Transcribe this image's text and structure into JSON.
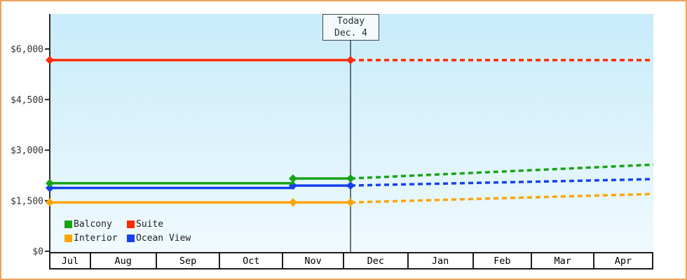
{
  "window": {
    "kind": "price-history-chart"
  },
  "colors": {
    "frame_border": "#eba25c",
    "plot_top": "#c8ebfa",
    "plot_bottom": "#f0fafe",
    "axis": "#2b2b2b",
    "today_line": "#3c464d",
    "balcony": "#17a317",
    "suite": "#fa2b00",
    "interior": "#ffa405",
    "ocean_view": "#1441ef"
  },
  "legend": {
    "items": [
      {
        "label": "Balcony",
        "color": "#17a317"
      },
      {
        "label": "Suite",
        "color": "#fa2b00"
      },
      {
        "label": "Interior",
        "color": "#ffa405"
      },
      {
        "label": "Ocean View",
        "color": "#1441ef"
      }
    ]
  },
  "chart_data": {
    "type": "line",
    "title": "",
    "xlabel": "",
    "ylabel": "",
    "grid": false,
    "legend_position": "bottom-left",
    "ylim": [
      0,
      6000
    ],
    "y_ticks": [
      {
        "value": 0,
        "label": "$0"
      },
      {
        "value": 1500,
        "label": "$1,500"
      },
      {
        "value": 3000,
        "label": "$3,000"
      },
      {
        "value": 4500,
        "label": "$4,500"
      },
      {
        "value": 6000,
        "label": "$6,000"
      }
    ],
    "x_months": [
      {
        "label": "Jul",
        "width_pct": 6.73
      },
      {
        "label": "Aug",
        "width_pct": 10.9
      },
      {
        "label": "Sep",
        "width_pct": 10.56
      },
      {
        "label": "Oct",
        "width_pct": 10.44
      },
      {
        "label": "Nov",
        "width_pct": 10.09
      },
      {
        "label": "Dec",
        "width_pct": 10.67
      },
      {
        "label": "Jan",
        "width_pct": 10.79
      },
      {
        "label": "Feb",
        "width_pct": 9.74
      },
      {
        "label": "Mar",
        "width_pct": 10.33
      },
      {
        "label": "Apr",
        "width_pct": 9.75
      }
    ],
    "today": {
      "line1": "Today",
      "line2": "Dec. 4",
      "x_frac": 0.4983
    },
    "series": [
      {
        "name": "Interior",
        "color": "#ffa405",
        "solid": [
          [
            0,
            1450
          ],
          [
            0.4983,
            1450
          ]
        ],
        "dotted": [
          [
            0.4983,
            1450
          ],
          [
            1,
            1700
          ]
        ],
        "markers": [
          [
            0,
            1450
          ],
          [
            0.403,
            1450
          ],
          [
            0.4983,
            1450
          ]
        ]
      },
      {
        "name": "Ocean View",
        "color": "#1441ef",
        "solid": [
          [
            0,
            1880
          ],
          [
            0.403,
            1880
          ],
          [
            0.403,
            1950
          ],
          [
            0.4983,
            1950
          ]
        ],
        "dotted": [
          [
            0.4983,
            1950
          ],
          [
            1,
            2140
          ]
        ],
        "markers": [
          [
            0,
            1880
          ],
          [
            0.403,
            1950
          ],
          [
            0.4983,
            1950
          ]
        ]
      },
      {
        "name": "Balcony",
        "color": "#17a317",
        "solid": [
          [
            0,
            2020
          ],
          [
            0.403,
            2020
          ],
          [
            0.403,
            2160
          ],
          [
            0.4983,
            2160
          ]
        ],
        "dotted": [
          [
            0.4983,
            2160
          ],
          [
            1,
            2570
          ]
        ],
        "markers": [
          [
            0,
            2020
          ],
          [
            0.403,
            2160
          ],
          [
            0.4983,
            2160
          ]
        ]
      },
      {
        "name": "Suite",
        "color": "#fa2b00",
        "solid": [
          [
            0,
            5670
          ],
          [
            0.4983,
            5670
          ]
        ],
        "dotted": [
          [
            0.4983,
            5670
          ],
          [
            1,
            5670
          ]
        ],
        "markers": [
          [
            0,
            5670
          ],
          [
            0.4983,
            5670
          ]
        ]
      }
    ]
  }
}
